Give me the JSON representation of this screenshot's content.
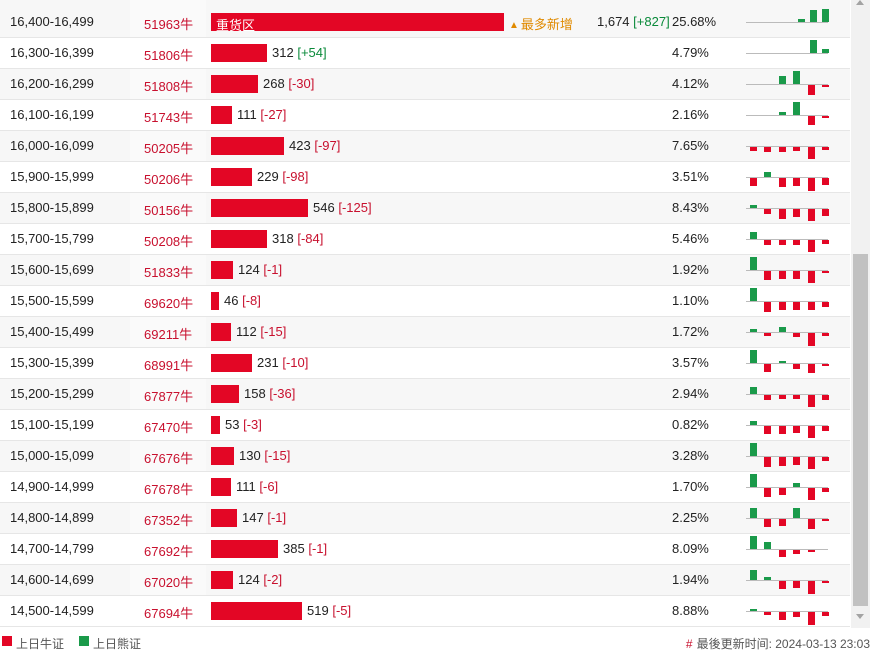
{
  "colors": {
    "bull": "#e30625",
    "bear": "#1a9a4a",
    "code": "#c8102e",
    "tag": "#e08a00"
  },
  "rows": [
    {
      "range": "16,400-16,499",
      "code": "51963牛",
      "bar_label": "重货区",
      "bar_fraction": 1.0,
      "tag": "最多新增",
      "tag_icon": "triangle-up-icon",
      "value": "1,674",
      "delta": "[+827]",
      "delta_sign": "pos",
      "pct": "25.68%",
      "spark": [
        0,
        0,
        0,
        0,
        0.2,
        0.9,
        1.0
      ],
      "spark_sign": "g"
    },
    {
      "range": "16,300-16,399",
      "code": "51806牛",
      "value": "312",
      "delta": "[+54]",
      "delta_sign": "pos",
      "pct": "4.79%",
      "bar_fraction": 0.19,
      "spark": [
        0,
        0,
        0,
        0,
        0,
        1.0,
        0.3
      ],
      "spark_sign": "g"
    },
    {
      "range": "16,200-16,299",
      "code": "51808牛",
      "value": "268",
      "delta": "[-30]",
      "delta_sign": "neg",
      "pct": "4.12%",
      "bar_fraction": 0.16,
      "spark": [
        0,
        0,
        0.6,
        1.0,
        -0.8,
        -0.1
      ],
      "spark_sign": "m"
    },
    {
      "range": "16,100-16,199",
      "code": "51743牛",
      "value": "111",
      "delta": "[-27]",
      "delta_sign": "neg",
      "pct": "2.16%",
      "bar_fraction": 0.07,
      "spark": [
        0,
        0,
        0.2,
        1.0,
        -0.7,
        -0.1
      ],
      "spark_sign": "m"
    },
    {
      "range": "16,000-16,099",
      "code": "50205牛",
      "value": "423",
      "delta": "[-97]",
      "delta_sign": "neg",
      "pct": "7.65%",
      "bar_fraction": 0.25,
      "spark": [
        -0.3,
        -0.4,
        -0.4,
        -0.3,
        -0.9,
        -0.2
      ],
      "spark_sign": "r"
    },
    {
      "range": "15,900-15,999",
      "code": "50206牛",
      "value": "229",
      "delta": "[-98]",
      "delta_sign": "neg",
      "pct": "3.51%",
      "bar_fraction": 0.14,
      "spark": [
        -0.6,
        0.4,
        -0.7,
        -0.6,
        -1.0,
        -0.5
      ],
      "spark_sign": "m"
    },
    {
      "range": "15,800-15,899",
      "code": "50156牛",
      "value": "546",
      "delta": "[-125]",
      "delta_sign": "neg",
      "pct": "8.43%",
      "bar_fraction": 0.33,
      "spark": [
        0.2,
        -0.4,
        -0.8,
        -0.6,
        -0.9,
        -0.5
      ],
      "spark_sign": "m"
    },
    {
      "range": "15,700-15,799",
      "code": "50208牛",
      "value": "318",
      "delta": "[-84]",
      "delta_sign": "neg",
      "pct": "5.46%",
      "bar_fraction": 0.19,
      "spark": [
        0.5,
        -0.4,
        -0.4,
        -0.4,
        -0.9,
        -0.3
      ],
      "spark_sign": "m"
    },
    {
      "range": "15,600-15,699",
      "code": "51833牛",
      "value": "124",
      "delta": "[-1]",
      "delta_sign": "neg",
      "pct": "1.92%",
      "bar_fraction": 0.075,
      "spark": [
        1.0,
        -0.7,
        -0.6,
        -0.6,
        -0.9,
        -0.1
      ],
      "spark_sign": "m"
    },
    {
      "range": "15,500-15,599",
      "code": "69620牛",
      "value": "46",
      "delta": "[-8]",
      "delta_sign": "neg",
      "pct": "1.10%",
      "bar_fraction": 0.028,
      "spark": [
        1.0,
        -0.8,
        -0.6,
        -0.6,
        -0.6,
        -0.4
      ],
      "spark_sign": "m"
    },
    {
      "range": "15,400-15,499",
      "code": "69211牛",
      "value": "112",
      "delta": "[-15]",
      "delta_sign": "neg",
      "pct": "1.72%",
      "bar_fraction": 0.068,
      "spark": [
        0.2,
        -0.2,
        0.4,
        -0.3,
        -1.0,
        -0.2
      ],
      "spark_sign": "m"
    },
    {
      "range": "15,300-15,399",
      "code": "68991牛",
      "value": "231",
      "delta": "[-10]",
      "delta_sign": "neg",
      "pct": "3.57%",
      "bar_fraction": 0.14,
      "spark": [
        1.0,
        -0.6,
        0.1,
        -0.4,
        -0.7,
        -0.1
      ],
      "spark_sign": "m"
    },
    {
      "range": "15,200-15,299",
      "code": "67877牛",
      "value": "158",
      "delta": "[-36]",
      "delta_sign": "neg",
      "pct": "2.94%",
      "bar_fraction": 0.095,
      "spark": [
        0.5,
        -0.4,
        -0.3,
        -0.3,
        -0.9,
        -0.4
      ],
      "spark_sign": "m"
    },
    {
      "range": "15,100-15,199",
      "code": "67470牛",
      "value": "53",
      "delta": "[-3]",
      "delta_sign": "neg",
      "pct": "0.82%",
      "bar_fraction": 0.032,
      "spark": [
        0.3,
        -0.6,
        -0.6,
        -0.5,
        -0.9,
        -0.4
      ],
      "spark_sign": "m"
    },
    {
      "range": "15,000-15,099",
      "code": "67676牛",
      "value": "130",
      "delta": "[-15]",
      "delta_sign": "neg",
      "pct": "3.28%",
      "bar_fraction": 0.08,
      "spark": [
        1.0,
        -0.8,
        -0.7,
        -0.6,
        -0.9,
        -0.3
      ],
      "spark_sign": "m"
    },
    {
      "range": "14,900-14,999",
      "code": "67678牛",
      "value": "111",
      "delta": "[-6]",
      "delta_sign": "neg",
      "pct": "1.70%",
      "bar_fraction": 0.068,
      "spark": [
        1.0,
        -0.7,
        -0.5,
        0.3,
        -0.9,
        -0.3
      ],
      "spark_sign": "m"
    },
    {
      "range": "14,800-14,899",
      "code": "67352牛",
      "value": "147",
      "delta": "[-1]",
      "delta_sign": "neg",
      "pct": "2.25%",
      "bar_fraction": 0.09,
      "spark": [
        0.8,
        -0.6,
        -0.5,
        0.8,
        -0.8,
        -0.1
      ],
      "spark_sign": "m"
    },
    {
      "range": "14,700-14,799",
      "code": "67692牛",
      "value": "385",
      "delta": "[-1]",
      "delta_sign": "neg",
      "pct": "8.09%",
      "bar_fraction": 0.23,
      "spark": [
        1.0,
        0.5,
        -0.5,
        -0.3,
        -0.1,
        0.0
      ],
      "spark_sign": "m"
    },
    {
      "range": "14,600-14,699",
      "code": "67020牛",
      "value": "124",
      "delta": "[-2]",
      "delta_sign": "neg",
      "pct": "1.94%",
      "bar_fraction": 0.075,
      "spark": [
        0.8,
        0.2,
        -0.6,
        -0.5,
        -1.0,
        -0.1
      ],
      "spark_sign": "m"
    },
    {
      "range": "14,500-14,599",
      "code": "67694牛",
      "value": "519",
      "delta": "[-5]",
      "delta_sign": "neg",
      "pct": "8.88%",
      "bar_fraction": 0.31,
      "spark": [
        0.1,
        -0.2,
        -0.6,
        -0.4,
        -1.0,
        -0.3
      ],
      "spark_sign": "m"
    }
  ],
  "legend": [
    {
      "label": "上日牛证",
      "color": "#e30625"
    },
    {
      "label": "上日熊证",
      "color": "#1a9a4a"
    }
  ],
  "update": {
    "hash": "#",
    "text": "最後更新时间: 2024-03-13 23:03"
  }
}
